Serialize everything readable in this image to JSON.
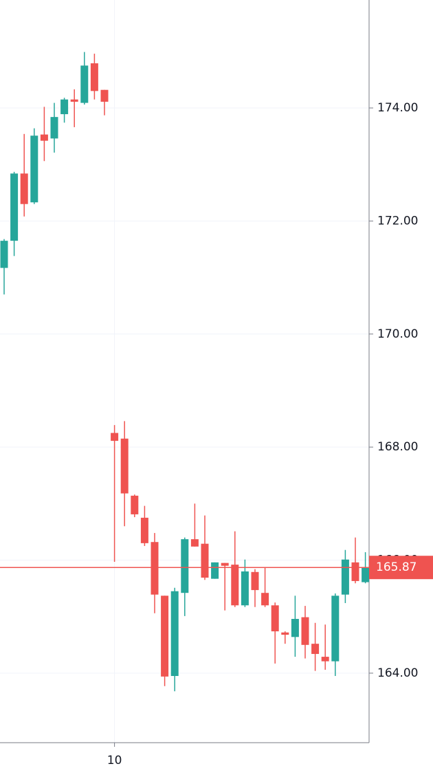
{
  "chart_data": {
    "type": "candlestick",
    "categories": [
      null,
      null,
      null,
      null,
      null,
      null,
      null,
      null,
      null,
      null,
      null,
      "10",
      null,
      null,
      null,
      null,
      null,
      null,
      null,
      null,
      null,
      null,
      null,
      null,
      null,
      null,
      null,
      null,
      null,
      null,
      null,
      null,
      null,
      null,
      null,
      null,
      null
    ],
    "open": [
      171.17,
      171.65,
      172.84,
      172.33,
      173.53,
      173.46,
      173.89,
      174.15,
      174.09,
      174.79,
      174.32,
      168.25,
      168.15,
      167.14,
      166.75,
      166.32,
      165.37,
      163.95,
      165.42,
      166.37,
      166.29,
      165.67,
      165.95,
      165.92,
      165.2,
      165.79,
      165.42,
      165.2,
      164.72,
      164.64,
      164.99,
      164.52,
      164.29,
      164.21,
      165.39,
      165.96,
      165.61
    ],
    "high": [
      171.68,
      172.87,
      173.54,
      173.64,
      174.02,
      174.09,
      174.18,
      174.33,
      174.99,
      174.96,
      174.32,
      168.39,
      168.46,
      167.16,
      166.96,
      166.48,
      165.37,
      165.51,
      166.4,
      167.0,
      166.79,
      165.96,
      165.95,
      166.51,
      166.01,
      165.84,
      165.86,
      165.25,
      164.74,
      165.37,
      165.19,
      164.89,
      164.86,
      165.41,
      166.18,
      166.4,
      166.14
    ],
    "low": [
      170.7,
      171.38,
      172.08,
      172.3,
      173.06,
      173.21,
      173.74,
      173.66,
      174.06,
      174.15,
      173.87,
      165.97,
      166.6,
      166.76,
      166.25,
      165.06,
      163.77,
      163.68,
      165.01,
      166.24,
      165.65,
      165.67,
      165.11,
      165.17,
      165.17,
      165.17,
      165.17,
      164.17,
      164.52,
      164.29,
      164.26,
      164.04,
      164.06,
      163.95,
      165.24,
      165.59,
      165.59
    ],
    "close": [
      171.65,
      172.84,
      172.3,
      173.51,
      173.42,
      173.84,
      174.15,
      174.11,
      174.75,
      174.3,
      174.11,
      168.11,
      167.18,
      166.81,
      166.3,
      165.39,
      163.94,
      165.45,
      166.37,
      166.24,
      165.69,
      165.96,
      165.9,
      165.2,
      165.8,
      165.47,
      165.2,
      164.74,
      164.68,
      164.96,
      164.5,
      164.34,
      164.21,
      165.37,
      166.01,
      165.63,
      165.87
    ],
    "up_color": "#26a69a",
    "down_color": "#ef5350",
    "last_price": 165.87,
    "last_price_color": "#ef5350",
    "ylim": [
      162.77,
      175.91
    ],
    "yticks": [
      {
        "value": 164,
        "label": "164.00"
      },
      {
        "value": 166,
        "label": "166.00"
      },
      {
        "value": 168,
        "label": "168.00"
      },
      {
        "value": 170,
        "label": "170.00"
      },
      {
        "value": 172,
        "label": "172.00"
      },
      {
        "value": 174,
        "label": "174.00"
      }
    ],
    "grid": true
  }
}
